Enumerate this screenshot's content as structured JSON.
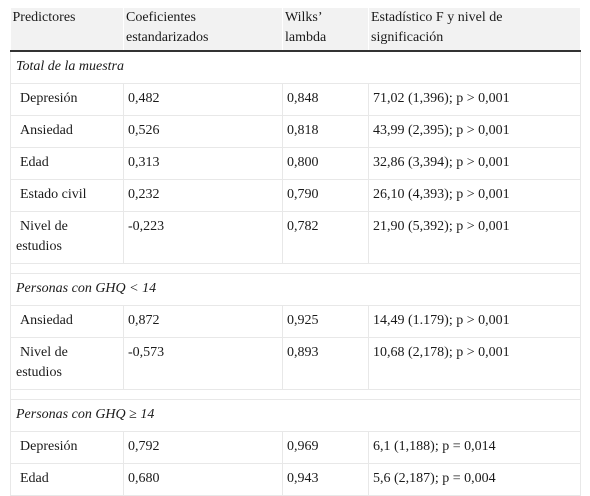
{
  "headers": {
    "col1": "Predictores",
    "col2_line1": "Coeficientes",
    "col2_line2": "estandarizados",
    "col3_line1": "Wilks’",
    "col3_line2": "lambda",
    "col4_line1": "Estadístico F y nivel de",
    "col4_line2": "significación"
  },
  "sections": [
    {
      "title": "Total de la muestra",
      "rows": [
        {
          "predictor": "Depresión",
          "coef": "0,482",
          "wilks": "0,848",
          "f": "71,02 (1,396); p > 0,001"
        },
        {
          "predictor": "Ansiedad",
          "coef": "0,526",
          "wilks": "0,818",
          "f": "43,99 (2,395); p > 0,001"
        },
        {
          "predictor": "Edad",
          "coef": "0,313",
          "wilks": "0,800",
          "f": "32,86 (3,394); p > 0,001"
        },
        {
          "predictor": "Estado civil",
          "coef": "0,232",
          "wilks": "0,790",
          "f": "26,10 (4,393); p > 0,001"
        },
        {
          "predictor_line1": "Nivel de",
          "predictor_line2": "estudios",
          "coef": "-0,223",
          "wilks": "0,782",
          "f": "21,90 (5,392); p > 0,001"
        }
      ]
    },
    {
      "title": "Personas con GHQ < 14",
      "rows": [
        {
          "predictor": "Ansiedad",
          "coef": "0,872",
          "wilks": "0,925",
          "f": "14,49 (1.179); p > 0,001"
        },
        {
          "predictor_line1": "Nivel de",
          "predictor_line2": "estudios",
          "coef": "-0,573",
          "wilks": "0,893",
          "f": "10,68 (2,178); p > 0,001"
        }
      ]
    },
    {
      "title": "Personas con GHQ ≥ 14",
      "rows": [
        {
          "predictor": "Depresión",
          "coef": "0,792",
          "wilks": "0,969",
          "f": "6,1 (1,188); p = 0,014"
        },
        {
          "predictor": "Edad",
          "coef": "0,680",
          "wilks": "0,943",
          "f": "5,6 (2,187); p = 0,004"
        }
      ]
    }
  ]
}
